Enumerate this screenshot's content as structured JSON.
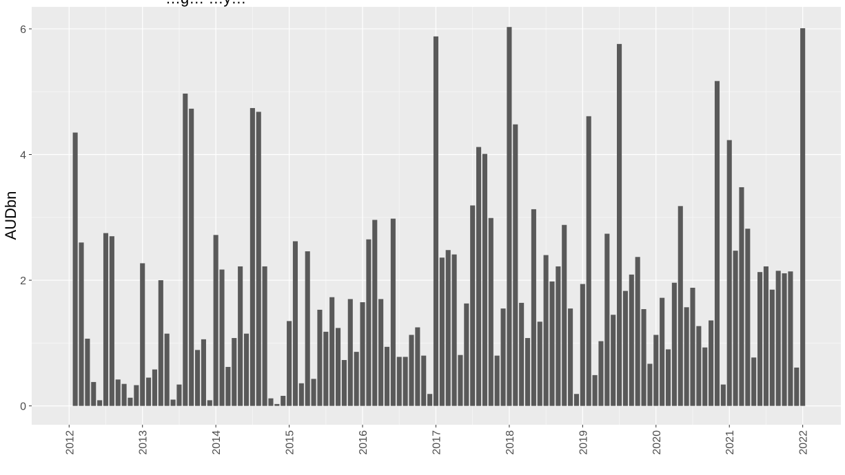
{
  "chart_data": {
    "type": "bar",
    "title": "…g… …y…",
    "xlabel": "",
    "ylabel": "AUDbn",
    "ylim": [
      -0.3,
      6.35
    ],
    "y_ticks": [
      0,
      2,
      4,
      6
    ],
    "x_ticks": [
      "2012",
      "2013",
      "2014",
      "2015",
      "2016",
      "2017",
      "2018",
      "2019",
      "2020",
      "2021",
      "2022"
    ],
    "x_start": "2012-01",
    "x_end": "2022-12",
    "bar_color": "#595959",
    "panel_background": "#ebebeb",
    "grid": true,
    "series": [
      {
        "values": [
          4.35,
          2.6,
          1.07,
          0.38,
          0.09,
          2.75,
          2.7,
          0.42,
          0.35,
          0.13,
          0.33,
          2.27,
          0.45,
          0.58,
          2.0,
          1.15,
          0.1,
          0.34,
          4.97,
          4.73,
          0.89,
          1.06,
          0.09,
          2.72,
          2.17,
          0.62,
          1.08,
          2.22,
          1.15,
          4.74,
          4.68,
          2.22,
          0.12,
          0.03,
          0.16,
          1.35,
          2.62,
          0.36,
          2.46,
          0.43,
          1.53,
          1.18,
          1.73,
          1.24,
          0.73,
          1.7,
          0.86,
          1.65,
          2.65,
          2.96,
          1.7,
          0.94,
          2.98,
          0.78,
          0.78,
          1.13,
          1.25,
          0.8,
          0.19,
          5.88,
          2.36,
          2.48,
          2.41,
          0.81,
          1.63,
          3.19,
          4.12,
          4.01,
          2.99,
          0.8,
          1.55,
          6.03,
          4.48,
          1.64,
          1.08,
          3.13,
          1.34,
          2.4,
          1.98,
          2.22,
          2.88,
          1.55,
          0.19,
          1.94,
          4.61,
          0.49,
          1.03,
          2.74,
          1.45,
          5.76,
          1.83,
          2.09,
          2.37,
          1.54,
          0.67,
          1.13,
          1.72,
          0.9,
          1.96,
          3.18,
          1.57,
          1.88,
          1.27,
          0.93,
          1.36,
          5.17,
          0.34,
          4.23,
          2.47,
          3.48,
          2.82,
          0.77,
          2.13,
          2.22,
          1.85,
          2.15,
          2.11,
          2.14,
          0.61,
          6.01
        ]
      }
    ]
  }
}
